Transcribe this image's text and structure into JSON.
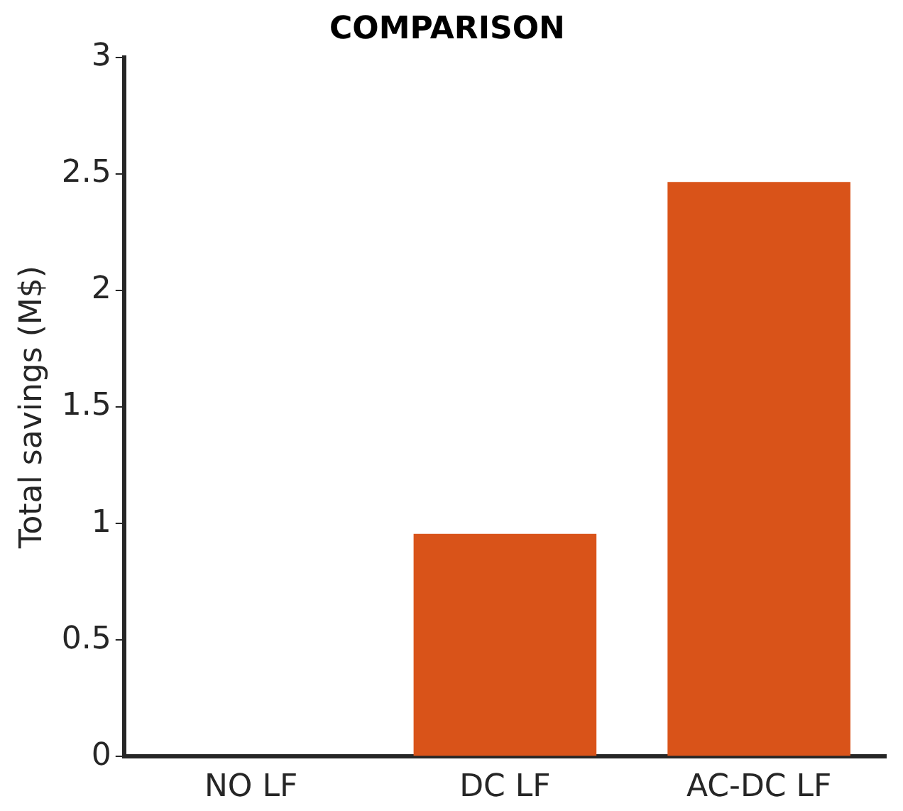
{
  "chart_data": {
    "type": "bar",
    "title": "COMPARISON",
    "ylabel": "Total savings (M$)",
    "categories": [
      "NO LF",
      "DC LF",
      "AC-DC LF"
    ],
    "values": [
      0,
      0.955,
      2.465
    ],
    "color": "#d95319",
    "ylim": [
      0,
      3
    ],
    "yticks": [
      0,
      0.5,
      1,
      1.5,
      2,
      2.5,
      3
    ],
    "grid": false,
    "legend": false
  }
}
